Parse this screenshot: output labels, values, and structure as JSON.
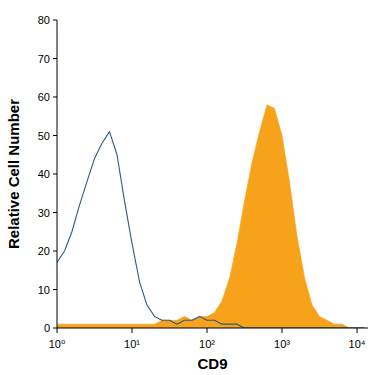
{
  "chart_data": {
    "type": "line",
    "x_label": "CD9",
    "y_label": "Relative Cell Number",
    "log": "x",
    "grid": false,
    "x": [
      1,
      1.26,
      1.58,
      2,
      2.51,
      3.16,
      3.98,
      5.01,
      6.31,
      7.94,
      10,
      12.6,
      15.8,
      20,
      25.1,
      31.6,
      39.8,
      50.1,
      63.1,
      79.4,
      100,
      126,
      158,
      200,
      251,
      316,
      398,
      501,
      631,
      794,
      1000,
      1260,
      1580,
      2000,
      2510,
      3160,
      3980,
      5010,
      6310,
      7940,
      10000,
      12600
    ],
    "series": [
      {
        "type": "line",
        "color": "#2b5b84",
        "values": [
          17,
          20,
          25,
          32,
          38,
          44,
          48,
          51,
          45,
          33,
          22,
          12,
          6,
          3,
          2,
          2,
          1,
          2,
          2,
          3,
          2,
          2,
          1,
          1,
          1,
          0,
          0,
          0,
          0,
          0,
          0,
          0,
          0,
          0,
          0,
          0,
          0,
          0,
          0,
          0,
          0,
          0
        ]
      },
      {
        "type": "area",
        "color": "#f7a21b",
        "values": [
          1,
          1,
          1,
          1,
          1,
          1,
          1,
          1,
          1,
          1,
          1,
          1,
          1,
          1,
          2,
          2,
          2,
          3,
          2,
          3,
          3,
          4,
          7,
          13,
          22,
          33,
          43,
          51,
          58,
          57,
          50,
          38,
          24,
          13,
          6,
          3,
          2,
          1,
          1,
          0,
          0,
          0
        ]
      }
    ],
    "xlim": [
      1,
      14000
    ],
    "xticks": [
      {
        "value": 1,
        "label": "10⁰"
      },
      {
        "value": 10,
        "label": "10¹"
      },
      {
        "value": 100,
        "label": "10²"
      },
      {
        "value": 1000,
        "label": "10³"
      },
      {
        "value": 10000,
        "label": "10⁴"
      }
    ],
    "ylim": [
      0,
      80
    ],
    "yticks": [
      0,
      10,
      20,
      30,
      40,
      50,
      60,
      70,
      80
    ]
  }
}
